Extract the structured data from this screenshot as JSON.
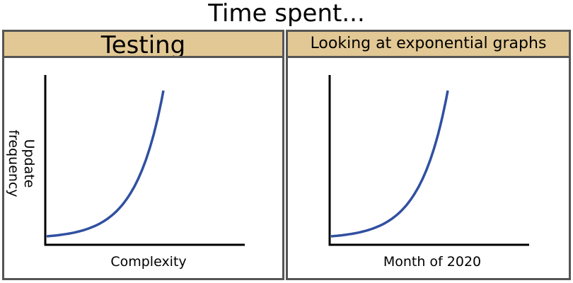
{
  "title": "Time spent...",
  "colors": {
    "curve": "#3050a0",
    "header_bg": "#e2c894",
    "border": "#555555"
  },
  "chart_data": [
    {
      "type": "line",
      "title": "Testing",
      "xlabel": "Complexity",
      "ylabel_lines": [
        "Update",
        "frequency"
      ],
      "grid": false,
      "series": [
        {
          "x": [
            0,
            0.1,
            0.2,
            0.3,
            0.4,
            0.5,
            0.6,
            0.7,
            0.8,
            0.9,
            1.0
          ],
          "y": [
            0.04,
            0.05,
            0.07,
            0.1,
            0.15,
            0.22,
            0.32,
            0.45,
            0.62,
            0.82,
            1.0
          ]
        }
      ]
    },
    {
      "type": "line",
      "title": "Looking at exponential graphs",
      "xlabel": "Month of 2020",
      "ylabel_lines": [],
      "grid": false,
      "series": [
        {
          "x": [
            0,
            0.1,
            0.2,
            0.3,
            0.4,
            0.5,
            0.6,
            0.7,
            0.8,
            0.9,
            1.0
          ],
          "y": [
            0.04,
            0.05,
            0.07,
            0.1,
            0.15,
            0.22,
            0.32,
            0.45,
            0.62,
            0.82,
            1.0
          ]
        }
      ]
    }
  ]
}
